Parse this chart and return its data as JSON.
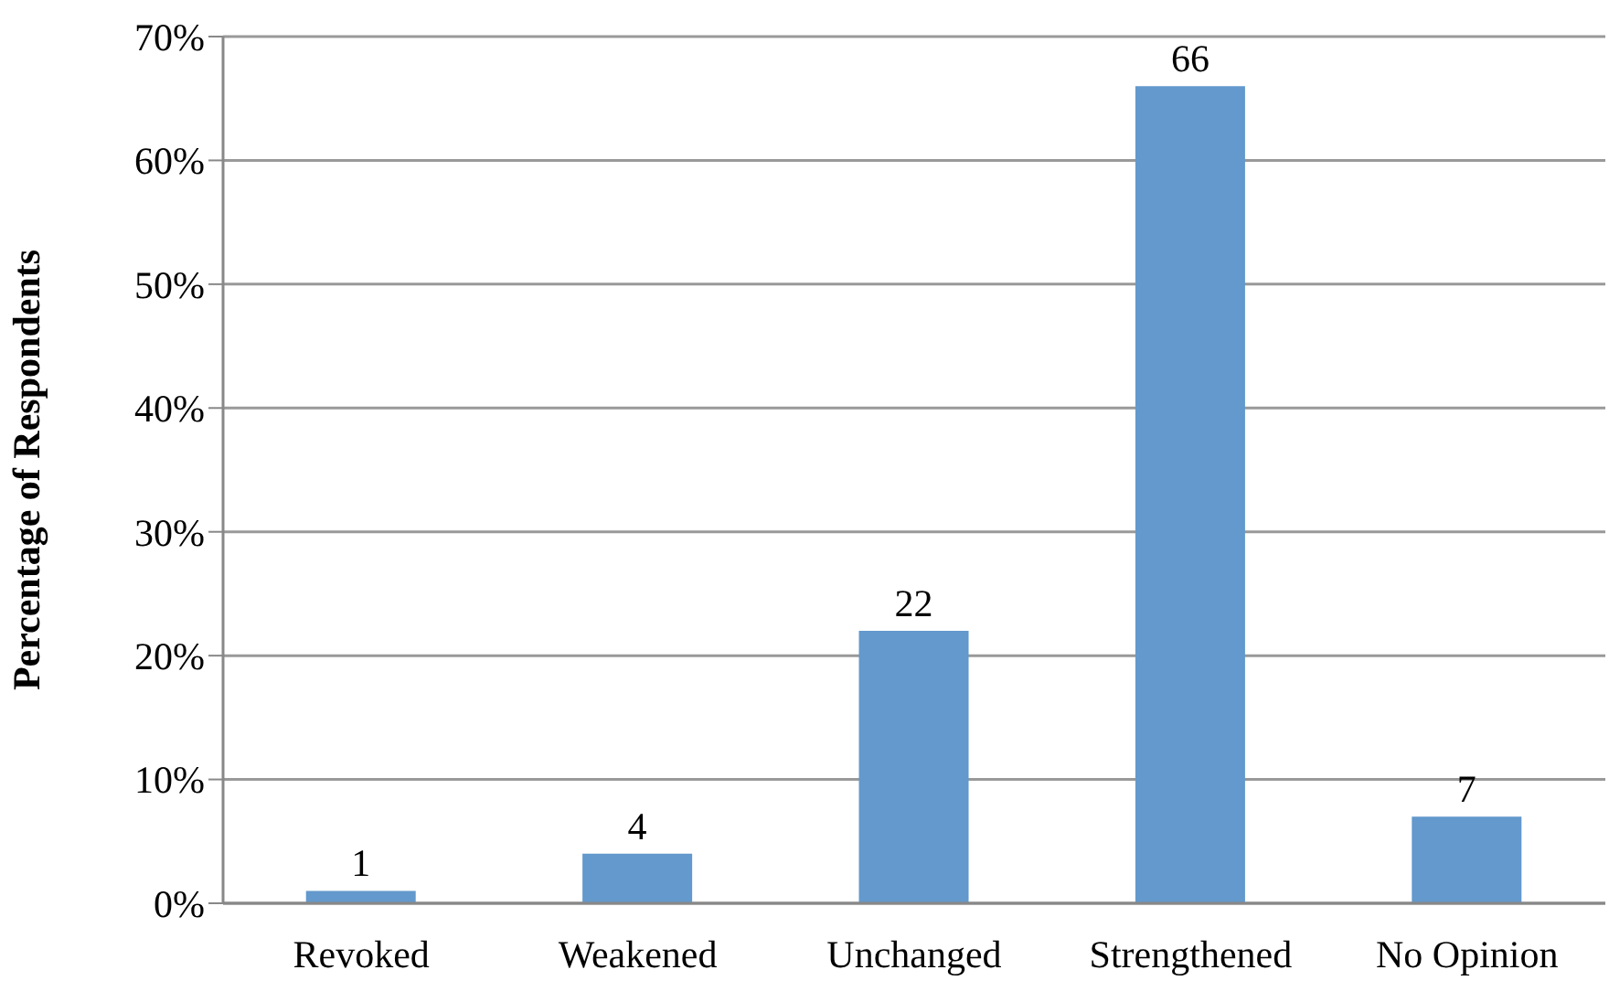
{
  "chart_data": {
    "type": "bar",
    "ylabel": "Percentage of Respondents",
    "categories": [
      "Revoked",
      "Weakened",
      "Unchanged",
      "Strengthened",
      "No Opinion"
    ],
    "values": [
      1,
      4,
      22,
      66,
      7
    ],
    "color": "#6399cc",
    "ylim": [
      0,
      70
    ],
    "yticks": [
      {
        "value": 0,
        "label": "0%"
      },
      {
        "value": 10,
        "label": "10%"
      },
      {
        "value": 20,
        "label": "20%"
      },
      {
        "value": 30,
        "label": "30%"
      },
      {
        "value": 40,
        "label": "40%"
      },
      {
        "value": 50,
        "label": "50%"
      },
      {
        "value": 60,
        "label": "60%"
      },
      {
        "value": 70,
        "label": "70%"
      }
    ],
    "grid": "y",
    "data_labels": true
  }
}
